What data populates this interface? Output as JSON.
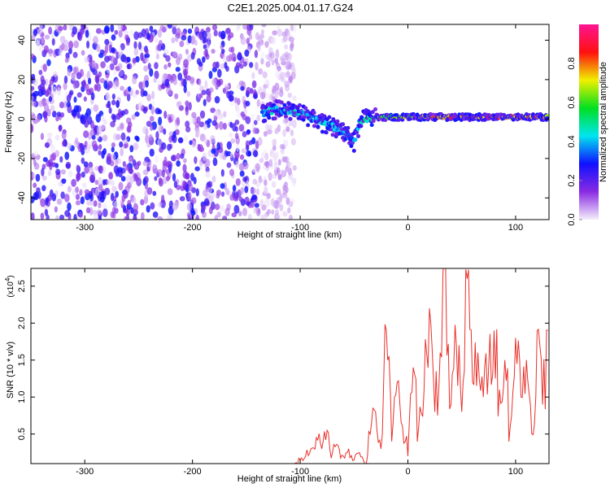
{
  "chart_data": [
    {
      "type": "heatmap",
      "title": "C2E1.2025.004.01.17.G24",
      "xlabel": "Height of straight line (km)",
      "ylabel": "Frequency (Hz)",
      "xlim": [
        -350,
        131
      ],
      "ylim": [
        -51,
        48
      ],
      "xticks": [
        "-300",
        "-200",
        "-100",
        "0",
        "100"
      ],
      "xtick_values": [
        -300,
        -200,
        -100,
        0,
        100
      ],
      "yticks": [
        "-40",
        "-20",
        "0",
        "20",
        "40"
      ],
      "ytick_values": [
        -40,
        -20,
        0,
        20,
        40
      ],
      "noise_region_km": [
        -350,
        -110
      ],
      "ridge": {
        "x": [
          -135,
          -120,
          -100,
          -80,
          -60,
          -50,
          -45,
          -40,
          -30,
          0,
          50,
          130
        ],
        "freq": [
          3,
          5,
          3,
          -2,
          -6,
          -12,
          -2,
          0,
          1,
          1,
          1,
          1
        ],
        "amplitude": [
          0.4,
          0.45,
          0.45,
          0.45,
          0.4,
          0.35,
          0.45,
          0.5,
          0.6,
          0.7,
          0.85,
          0.8
        ]
      },
      "colorbar": {
        "label": "Normalized spectral amplitude",
        "range": [
          0,
          1
        ],
        "ticks": [
          "0.0",
          "0.2",
          "0.4",
          "0.6",
          "0.8"
        ],
        "tick_values": [
          0,
          0.2,
          0.4,
          0.6,
          0.8
        ],
        "colors": [
          "#f4eefc",
          "#8a2be2",
          "#1010ff",
          "#00e5f0",
          "#00e020",
          "#f0f000",
          "#ff1010",
          "#ff1493"
        ]
      }
    },
    {
      "type": "line",
      "xlabel": "Height of straight line (km)",
      "ylabel": "SNR (10 * v/v)",
      "y_multiplier": "(x10",
      "y_multiplier_exp": "4",
      "ylim": [
        0.1,
        2.74
      ],
      "xlim": [
        -350,
        131
      ],
      "xticks": [
        "-300",
        "-200",
        "-100",
        "0",
        "100"
      ],
      "xtick_values": [
        -300,
        -200,
        -100,
        0,
        100
      ],
      "yticks": [
        "0.5",
        "1.0",
        "1.5",
        "2.0",
        "2.5"
      ],
      "ytick_values": [
        0.5,
        1.0,
        1.5,
        2.0,
        2.5
      ],
      "color": "#e8302a",
      "x_start": -350,
      "x_step": 5,
      "values": [
        0.05,
        0.05,
        0.05,
        0.05,
        0.05,
        0.05,
        0.05,
        0.05,
        0.05,
        0.05,
        0.05,
        0.05,
        0.05,
        0.05,
        0.05,
        0.05,
        0.05,
        0.05,
        0.05,
        0.05,
        0.05,
        0.05,
        0.05,
        0.05,
        0.05,
        0.05,
        0.05,
        0.05,
        0.05,
        0.05,
        0.05,
        0.05,
        0.05,
        0.05,
        0.05,
        0.05,
        0.05,
        0.05,
        0.05,
        0.05,
        0.05,
        0.05,
        0.05,
        0.05,
        0.05,
        0.05,
        0.05,
        0.05,
        0.05,
        0.1,
        0.15,
        0.2,
        0.3,
        0.45,
        0.3,
        0.55,
        0.25,
        0.35,
        0.2,
        0.3,
        0.15,
        0.25,
        0.1,
        0.5,
        0.8,
        0.3,
        1.9,
        0.4,
        1.2,
        0.6,
        0.2,
        1.4,
        0.6,
        1.1,
        2.2,
        0.8,
        1.6,
        2.75,
        0.9,
        1.7,
        0.8,
        2.6,
        1.2,
        1.6,
        1.0,
        1.4,
        1.9,
        1.1,
        1.5,
        0.6,
        1.8,
        1.0,
        1.5,
        0.5,
        1.9,
        0.9,
        1.9
      ]
    }
  ]
}
